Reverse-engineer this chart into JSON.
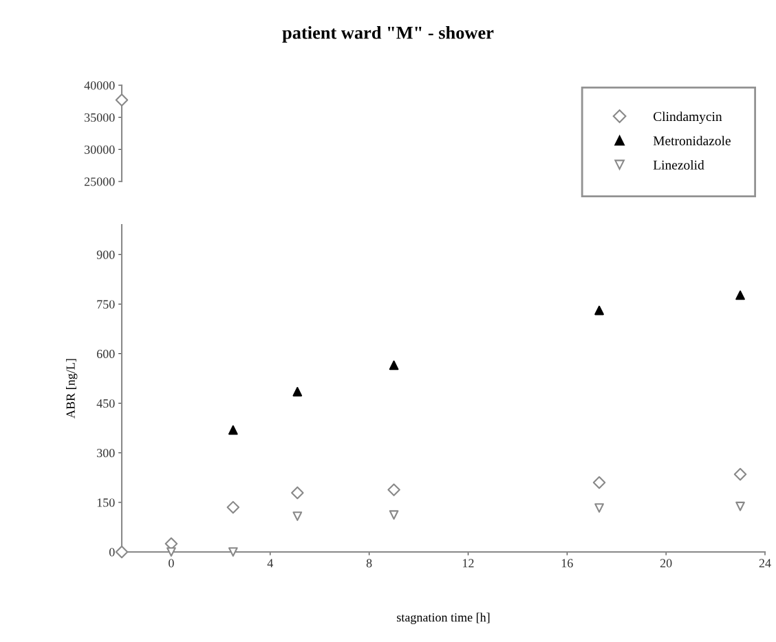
{
  "chart_data": [
    {
      "type": "scatter",
      "title": "patient ward \"M\" - shower",
      "xlim": [
        -2,
        24
      ],
      "ylim": [
        25000,
        40000
      ],
      "yticks": [
        25000,
        30000,
        35000,
        40000
      ],
      "tick_labels": "y",
      "grid": false,
      "series": [
        {
          "color": "#888888",
          "marker": "diamond",
          "x": [
            -2
          ],
          "values": [
            37700
          ]
        }
      ]
    },
    {
      "type": "scatter",
      "xlabel": "stagnation time [h]",
      "ylabel": "ABR [ng/L]",
      "xlim": [
        -2,
        24
      ],
      "xticks": [
        0,
        4,
        8,
        12,
        16,
        20,
        24
      ],
      "ylim": [
        0,
        990
      ],
      "yticks": [
        0,
        150,
        300,
        450,
        600,
        750,
        900
      ],
      "grid": false,
      "legend": "top right",
      "series": [
        {
          "name": "Clindamycin",
          "color": "#888888",
          "marker": "diamond",
          "x": [
            -2,
            0,
            2.5,
            5.1,
            9,
            17.3,
            23
          ],
          "values": [
            0,
            25,
            135,
            179,
            188,
            210,
            235
          ]
        },
        {
          "name": "Metronidazole",
          "color": "#000000",
          "marker": "triangle",
          "x": [
            2.5,
            5.1,
            9,
            17.3,
            23
          ],
          "values": [
            369,
            485,
            565,
            731,
            777
          ]
        },
        {
          "name": "Linezolid",
          "color": "#888888",
          "marker": "triangle-down",
          "x": [
            0,
            2.5,
            5.1,
            9,
            17.3,
            23
          ],
          "values": [
            0,
            0,
            108,
            112,
            133,
            138
          ]
        }
      ]
    }
  ]
}
